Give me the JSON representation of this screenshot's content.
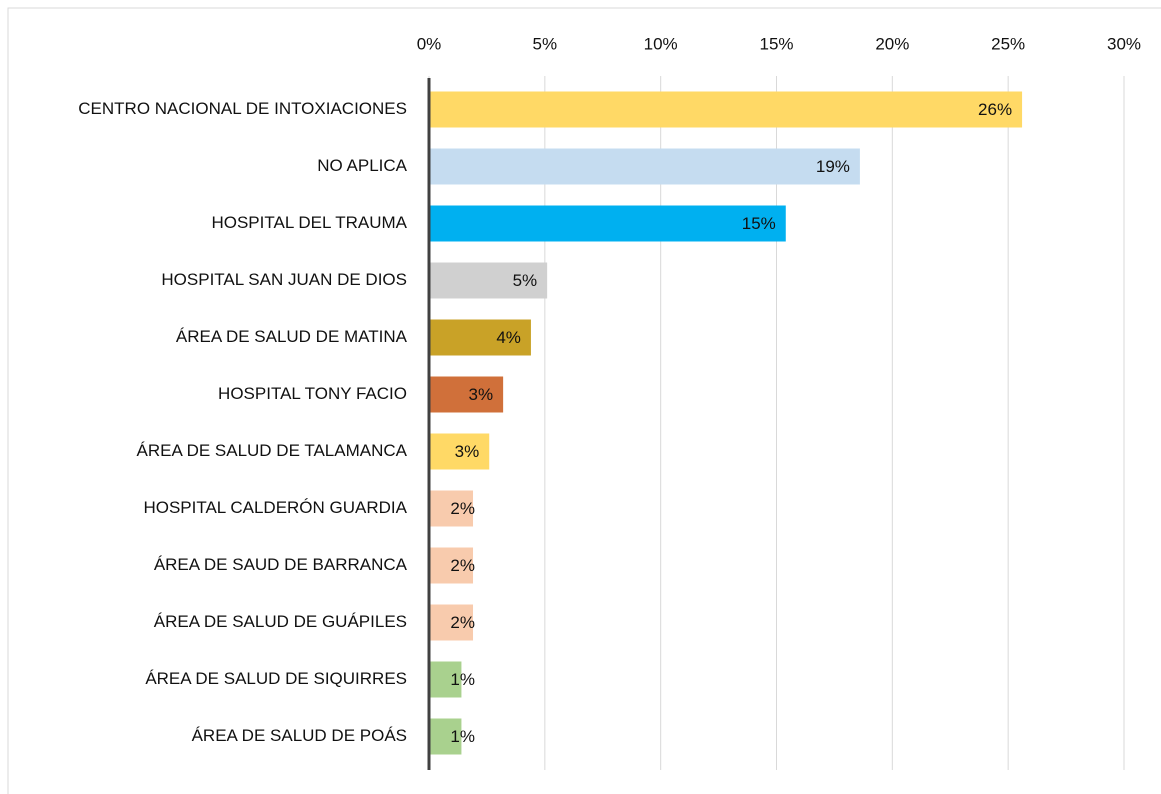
{
  "chart_data": {
    "type": "bar",
    "orientation": "horizontal",
    "categories": [
      "CENTRO NACIONAL DE INTOXIACIONES",
      "NO APLICA",
      "HOSPITAL DEL TRAUMA",
      "HOSPITAL SAN JUAN DE DIOS",
      "ÁREA DE SALUD DE MATINA",
      "HOSPITAL TONY FACIO",
      "ÁREA DE SALUD DE TALAMANCA",
      "HOSPITAL CALDERÓN GUARDIA",
      "ÁREA DE SAUD DE BARRANCA",
      "ÁREA DE SALUD DE GUÁPILES",
      "ÁREA DE SALUD DE SIQUIRRES",
      "ÁREA DE SALUD DE POÁS"
    ],
    "values": [
      25.6,
      18.6,
      15.4,
      5.1,
      4.4,
      3.2,
      2.6,
      1.9,
      1.9,
      1.9,
      1.4,
      1.4
    ],
    "value_labels": [
      "26%",
      "19%",
      "15%",
      "5%",
      "4%",
      "3%",
      "3%",
      "2%",
      "2%",
      "2%",
      "1%",
      "1%"
    ],
    "colors": [
      "#ffd966",
      "#c5dcf0",
      "#00b0f0",
      "#d0d0d0",
      "#c9a227",
      "#d0703a",
      "#ffd966",
      "#f8cbad",
      "#f8cbad",
      "#f8cbad",
      "#a9d18e",
      "#a9d18e"
    ],
    "xlim": [
      0,
      30
    ],
    "xticks": [
      {
        "value": 0,
        "label": "0%"
      },
      {
        "value": 5,
        "label": "5%"
      },
      {
        "value": 10,
        "label": "10%"
      },
      {
        "value": 15,
        "label": "15%"
      },
      {
        "value": 20,
        "label": "20%"
      },
      {
        "value": 25,
        "label": "25%"
      },
      {
        "value": 30,
        "label": "30%"
      }
    ],
    "grid": true
  }
}
